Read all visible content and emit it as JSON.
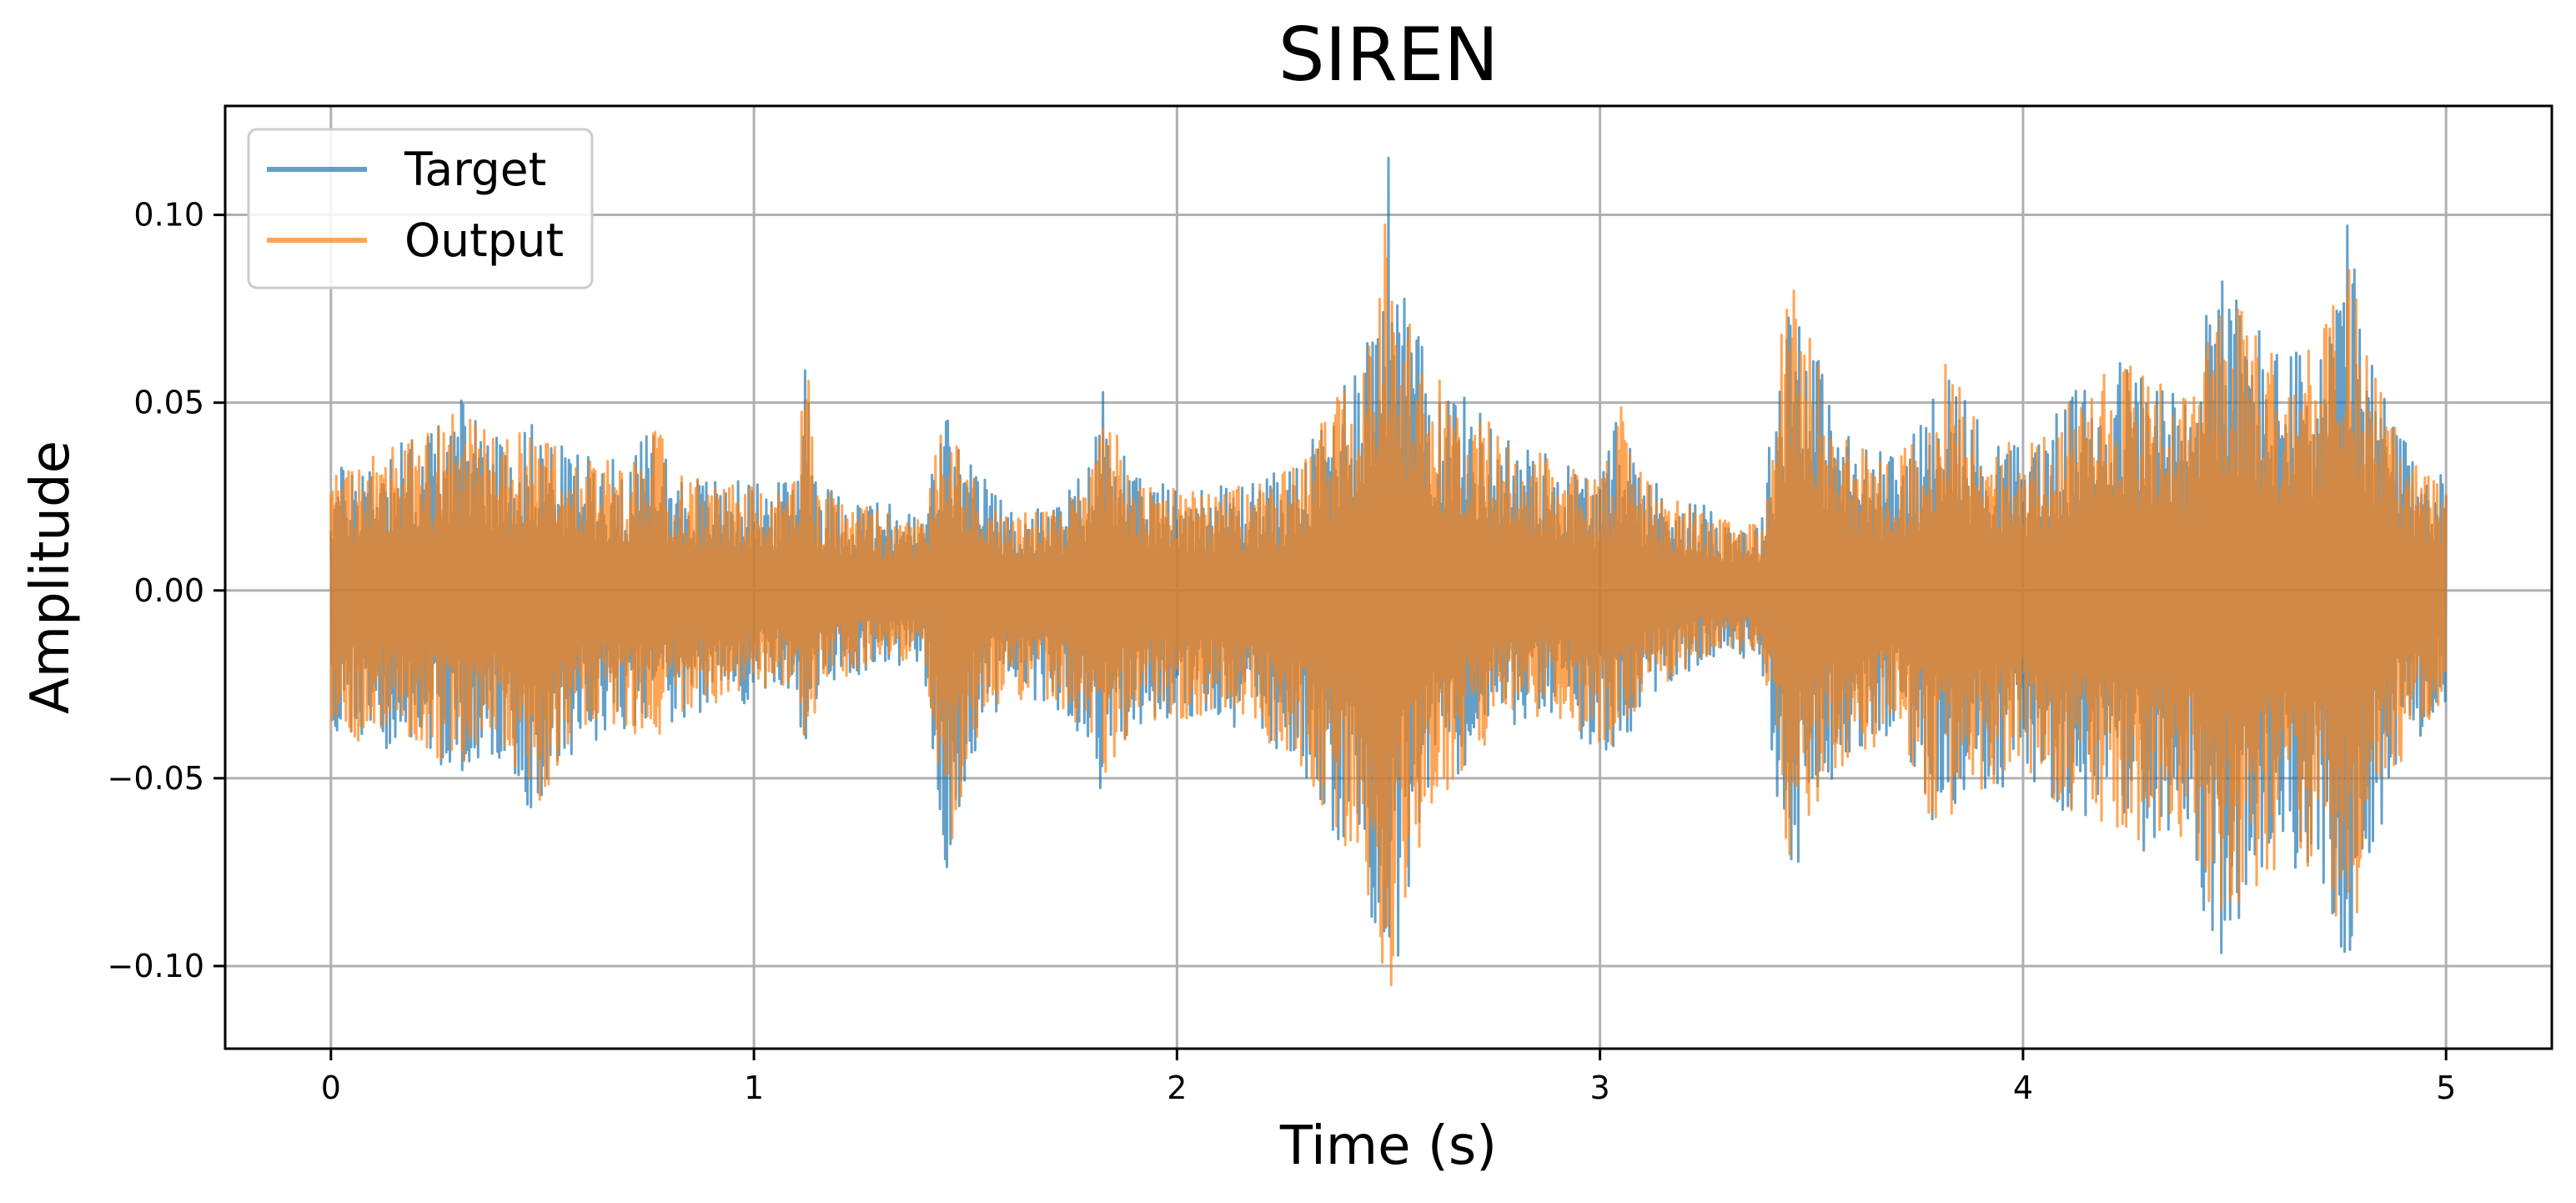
{
  "chart_data": {
    "type": "line",
    "title": "SIREN",
    "xlabel": "Time (s)",
    "ylabel": "Amplitude",
    "xlim": [
      -0.25,
      5.25
    ],
    "ylim": [
      -0.122,
      0.129
    ],
    "x_ticks": [
      0,
      1,
      2,
      3,
      4,
      5
    ],
    "x_tick_labels": [
      "0",
      "1",
      "2",
      "3",
      "4",
      "5"
    ],
    "y_ticks": [
      -0.1,
      -0.05,
      0.0,
      0.05,
      0.1
    ],
    "y_tick_labels": [
      "−0.10",
      "−0.05",
      "0.00",
      "0.05",
      "0.10"
    ],
    "grid": true,
    "legend_position": "top-left",
    "series": [
      {
        "name": "Target",
        "color": "#1f77b4",
        "opacity": 0.7,
        "duration_s": 5.0,
        "envelope": {
          "t": [
            0.0,
            0.02,
            0.1,
            0.2,
            0.3,
            0.33,
            0.4,
            0.48,
            0.55,
            0.62,
            0.7,
            0.78,
            0.8,
            0.9,
            1.0,
            1.05,
            1.1,
            1.12,
            1.15,
            1.2,
            1.3,
            1.4,
            1.44,
            1.46,
            1.5,
            1.55,
            1.6,
            1.7,
            1.8,
            1.82,
            1.9,
            2.0,
            2.1,
            2.2,
            2.3,
            2.4,
            2.47,
            2.5,
            2.52,
            2.55,
            2.6,
            2.7,
            2.8,
            2.9,
            3.0,
            3.05,
            3.1,
            3.2,
            3.3,
            3.38,
            3.42,
            3.45,
            3.5,
            3.55,
            3.6,
            3.7,
            3.78,
            3.8,
            3.9,
            4.0,
            4.1,
            4.2,
            4.3,
            4.4,
            4.44,
            4.5,
            4.6,
            4.7,
            4.77,
            4.8,
            4.9,
            5.0
          ],
          "upper": [
            0.03,
            0.033,
            0.038,
            0.042,
            0.05,
            0.052,
            0.042,
            0.045,
            0.038,
            0.036,
            0.035,
            0.046,
            0.032,
            0.03,
            0.029,
            0.028,
            0.032,
            0.074,
            0.03,
            0.026,
            0.024,
            0.02,
            0.045,
            0.048,
            0.035,
            0.03,
            0.022,
            0.022,
            0.035,
            0.058,
            0.03,
            0.028,
            0.028,
            0.03,
            0.035,
            0.06,
            0.08,
            0.117,
            0.1,
            0.075,
            0.06,
            0.05,
            0.04,
            0.036,
            0.03,
            0.05,
            0.032,
            0.025,
            0.02,
            0.018,
            0.06,
            0.09,
            0.07,
            0.05,
            0.04,
            0.036,
            0.048,
            0.065,
            0.045,
            0.038,
            0.05,
            0.063,
            0.06,
            0.05,
            0.095,
            0.08,
            0.065,
            0.065,
            0.099,
            0.07,
            0.04,
            0.03
          ],
          "lower": [
            -0.044,
            -0.04,
            -0.042,
            -0.045,
            -0.048,
            -0.05,
            -0.045,
            -0.06,
            -0.045,
            -0.04,
            -0.038,
            -0.044,
            -0.036,
            -0.032,
            -0.03,
            -0.025,
            -0.03,
            -0.047,
            -0.03,
            -0.025,
            -0.02,
            -0.02,
            -0.06,
            -0.081,
            -0.05,
            -0.035,
            -0.03,
            -0.03,
            -0.045,
            -0.054,
            -0.036,
            -0.035,
            -0.036,
            -0.04,
            -0.05,
            -0.07,
            -0.09,
            -0.111,
            -0.1,
            -0.08,
            -0.06,
            -0.045,
            -0.036,
            -0.035,
            -0.045,
            -0.044,
            -0.03,
            -0.022,
            -0.018,
            -0.018,
            -0.06,
            -0.083,
            -0.06,
            -0.05,
            -0.045,
            -0.04,
            -0.062,
            -0.065,
            -0.055,
            -0.05,
            -0.06,
            -0.065,
            -0.07,
            -0.065,
            -0.103,
            -0.09,
            -0.075,
            -0.075,
            -0.102,
            -0.08,
            -0.045,
            -0.03
          ]
        }
      },
      {
        "name": "Output",
        "color": "#ff7f0e",
        "opacity": 0.7,
        "duration_s": 5.0,
        "envelope": {
          "t": [
            0.0,
            0.02,
            0.1,
            0.2,
            0.3,
            0.33,
            0.4,
            0.48,
            0.55,
            0.62,
            0.7,
            0.78,
            0.8,
            0.9,
            1.0,
            1.05,
            1.1,
            1.12,
            1.15,
            1.2,
            1.3,
            1.4,
            1.44,
            1.46,
            1.5,
            1.55,
            1.6,
            1.7,
            1.8,
            1.82,
            1.9,
            2.0,
            2.1,
            2.2,
            2.3,
            2.4,
            2.47,
            2.5,
            2.52,
            2.55,
            2.6,
            2.7,
            2.8,
            2.9,
            3.0,
            3.05,
            3.1,
            3.2,
            3.3,
            3.38,
            3.42,
            3.45,
            3.5,
            3.55,
            3.6,
            3.7,
            3.78,
            3.8,
            3.9,
            4.0,
            4.1,
            4.2,
            4.3,
            4.4,
            4.44,
            4.5,
            4.6,
            4.7,
            4.77,
            4.8,
            4.9,
            5.0
          ],
          "upper": [
            0.029,
            0.032,
            0.037,
            0.041,
            0.049,
            0.051,
            0.041,
            0.044,
            0.037,
            0.035,
            0.034,
            0.045,
            0.031,
            0.029,
            0.028,
            0.027,
            0.031,
            0.073,
            0.029,
            0.025,
            0.023,
            0.019,
            0.044,
            0.047,
            0.034,
            0.029,
            0.021,
            0.021,
            0.034,
            0.057,
            0.029,
            0.027,
            0.027,
            0.029,
            0.034,
            0.059,
            0.079,
            0.116,
            0.099,
            0.074,
            0.059,
            0.049,
            0.039,
            0.035,
            0.029,
            0.049,
            0.031,
            0.024,
            0.019,
            0.017,
            0.059,
            0.089,
            0.069,
            0.049,
            0.039,
            0.035,
            0.047,
            0.064,
            0.044,
            0.037,
            0.049,
            0.062,
            0.059,
            0.049,
            0.094,
            0.079,
            0.064,
            0.064,
            0.098,
            0.069,
            0.039,
            0.029
          ],
          "lower": [
            -0.043,
            -0.039,
            -0.041,
            -0.044,
            -0.047,
            -0.049,
            -0.044,
            -0.059,
            -0.044,
            -0.039,
            -0.037,
            -0.043,
            -0.035,
            -0.031,
            -0.029,
            -0.024,
            -0.029,
            -0.046,
            -0.029,
            -0.024,
            -0.019,
            -0.019,
            -0.059,
            -0.079,
            -0.049,
            -0.034,
            -0.029,
            -0.029,
            -0.044,
            -0.052,
            -0.035,
            -0.034,
            -0.035,
            -0.039,
            -0.049,
            -0.069,
            -0.089,
            -0.109,
            -0.099,
            -0.079,
            -0.059,
            -0.044,
            -0.035,
            -0.034,
            -0.044,
            -0.043,
            -0.029,
            -0.021,
            -0.017,
            -0.017,
            -0.059,
            -0.081,
            -0.059,
            -0.049,
            -0.044,
            -0.039,
            -0.061,
            -0.064,
            -0.054,
            -0.049,
            -0.059,
            -0.064,
            -0.069,
            -0.064,
            -0.101,
            -0.089,
            -0.074,
            -0.074,
            -0.101,
            -0.079,
            -0.044,
            -0.029
          ]
        }
      }
    ]
  }
}
